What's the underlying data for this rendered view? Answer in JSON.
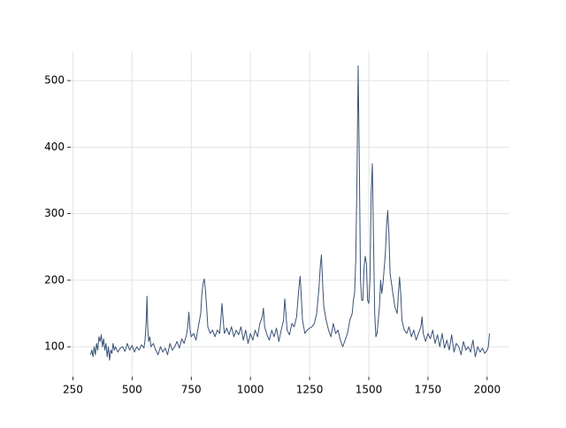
{
  "chart_data": {
    "type": "line",
    "color": "#3a5276",
    "grid": true,
    "xlim": [
      241,
      2094
    ],
    "ylim": [
      55,
      544
    ],
    "xticks": [
      250,
      500,
      750,
      1000,
      1250,
      1500,
      1750,
      2000
    ],
    "yticks": [
      100,
      200,
      300,
      400,
      500
    ],
    "x": [
      325,
      330,
      335,
      340,
      345,
      350,
      355,
      360,
      365,
      370,
      375,
      380,
      385,
      390,
      395,
      400,
      405,
      410,
      415,
      420,
      425,
      430,
      440,
      450,
      460,
      470,
      480,
      490,
      500,
      510,
      520,
      530,
      540,
      550,
      555,
      560,
      563,
      566,
      570,
      575,
      580,
      590,
      600,
      610,
      620,
      630,
      640,
      650,
      660,
      670,
      680,
      690,
      700,
      710,
      720,
      730,
      735,
      740,
      745,
      750,
      760,
      770,
      780,
      790,
      795,
      800,
      805,
      810,
      815,
      820,
      830,
      840,
      850,
      860,
      870,
      875,
      880,
      885,
      890,
      900,
      910,
      920,
      930,
      940,
      950,
      960,
      970,
      980,
      990,
      1000,
      1010,
      1020,
      1030,
      1040,
      1050,
      1055,
      1060,
      1070,
      1080,
      1090,
      1100,
      1110,
      1120,
      1130,
      1140,
      1145,
      1150,
      1155,
      1165,
      1175,
      1185,
      1195,
      1205,
      1210,
      1215,
      1220,
      1230,
      1240,
      1250,
      1260,
      1270,
      1280,
      1290,
      1295,
      1300,
      1305,
      1310,
      1320,
      1330,
      1340,
      1350,
      1360,
      1370,
      1380,
      1390,
      1400,
      1410,
      1420,
      1430,
      1435,
      1440,
      1445,
      1450,
      1455,
      1460,
      1465,
      1470,
      1475,
      1480,
      1485,
      1490,
      1495,
      1500,
      1505,
      1510,
      1515,
      1520,
      1525,
      1530,
      1535,
      1540,
      1545,
      1550,
      1555,
      1560,
      1570,
      1575,
      1580,
      1585,
      1590,
      1600,
      1610,
      1620,
      1625,
      1630,
      1635,
      1640,
      1650,
      1660,
      1670,
      1680,
      1690,
      1700,
      1710,
      1720,
      1725,
      1730,
      1740,
      1750,
      1760,
      1770,
      1780,
      1790,
      1800,
      1810,
      1820,
      1830,
      1840,
      1850,
      1860,
      1870,
      1880,
      1890,
      1900,
      1910,
      1920,
      1930,
      1940,
      1950,
      1960,
      1970,
      1980,
      1990,
      2000,
      2005,
      2010
    ],
    "values": [
      88,
      95,
      85,
      100,
      88,
      105,
      95,
      115,
      108,
      118,
      100,
      112,
      95,
      105,
      85,
      100,
      80,
      95,
      90,
      105,
      95,
      100,
      92,
      98,
      100,
      93,
      105,
      95,
      102,
      92,
      100,
      95,
      103,
      98,
      110,
      140,
      176,
      130,
      108,
      115,
      100,
      105,
      95,
      88,
      100,
      92,
      98,
      88,
      105,
      95,
      100,
      108,
      98,
      112,
      105,
      118,
      130,
      152,
      125,
      115,
      120,
      110,
      130,
      150,
      180,
      195,
      202,
      185,
      160,
      130,
      120,
      125,
      115,
      125,
      120,
      140,
      165,
      140,
      120,
      128,
      118,
      130,
      115,
      125,
      118,
      130,
      110,
      125,
      105,
      120,
      110,
      125,
      115,
      135,
      145,
      158,
      130,
      118,
      110,
      125,
      115,
      128,
      108,
      125,
      140,
      172,
      150,
      125,
      118,
      135,
      130,
      145,
      190,
      206,
      175,
      140,
      120,
      125,
      128,
      130,
      135,
      150,
      190,
      220,
      238,
      195,
      160,
      140,
      125,
      115,
      135,
      120,
      125,
      110,
      100,
      110,
      120,
      140,
      150,
      170,
      180,
      230,
      350,
      522,
      380,
      200,
      170,
      170,
      220,
      236,
      225,
      170,
      165,
      200,
      330,
      375,
      260,
      150,
      115,
      120,
      140,
      160,
      200,
      180,
      195,
      240,
      280,
      305,
      270,
      210,
      185,
      160,
      150,
      180,
      205,
      180,
      140,
      125,
      120,
      130,
      115,
      125,
      110,
      120,
      130,
      145,
      120,
      108,
      120,
      112,
      125,
      105,
      118,
      100,
      120,
      98,
      110,
      95,
      118,
      92,
      105,
      100,
      88,
      108,
      95,
      100,
      92,
      110,
      85,
      100,
      92,
      98,
      90,
      95,
      100,
      120
    ]
  }
}
